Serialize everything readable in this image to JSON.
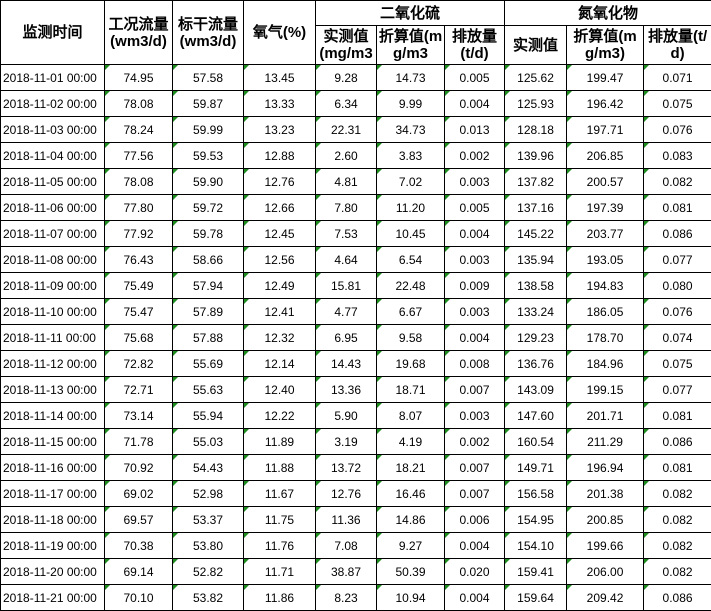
{
  "headers": {
    "time": "监测时间",
    "flow_work": "工况流量(wm3/d)",
    "flow_std": "标干流量(wm3/d)",
    "oxygen": "氧气(%)",
    "so2": "二氧化硫",
    "nox": "氮氧化物",
    "measured": "实测值(mg/m3",
    "converted": "折算值(mg/m3",
    "emission": "排放量(t/d)",
    "measured_nox": "实测值",
    "converted_nox": "折算值(mg/m3)",
    "emission_nox": "排放量(t/d)"
  },
  "rows": [
    {
      "time": "2018-11-01 00:00",
      "flow_work": "74.95",
      "flow_std": "57.58",
      "oxygen": "13.45",
      "so2_measured": "9.28",
      "so2_converted": "14.73",
      "so2_emission": "0.005",
      "nox_measured": "125.62",
      "nox_converted": "199.47",
      "nox_emission": "0.071"
    },
    {
      "time": "2018-11-02 00:00",
      "flow_work": "78.08",
      "flow_std": "59.87",
      "oxygen": "13.33",
      "so2_measured": "6.34",
      "so2_converted": "9.99",
      "so2_emission": "0.004",
      "nox_measured": "125.93",
      "nox_converted": "196.42",
      "nox_emission": "0.075"
    },
    {
      "time": "2018-11-03 00:00",
      "flow_work": "78.24",
      "flow_std": "59.99",
      "oxygen": "13.23",
      "so2_measured": "22.31",
      "so2_converted": "34.73",
      "so2_emission": "0.013",
      "nox_measured": "128.18",
      "nox_converted": "197.71",
      "nox_emission": "0.076"
    },
    {
      "time": "2018-11-04 00:00",
      "flow_work": "77.56",
      "flow_std": "59.53",
      "oxygen": "12.88",
      "so2_measured": "2.60",
      "so2_converted": "3.83",
      "so2_emission": "0.002",
      "nox_measured": "139.96",
      "nox_converted": "206.85",
      "nox_emission": "0.083"
    },
    {
      "time": "2018-11-05 00:00",
      "flow_work": "78.08",
      "flow_std": "59.90",
      "oxygen": "12.76",
      "so2_measured": "4.81",
      "so2_converted": "7.02",
      "so2_emission": "0.003",
      "nox_measured": "137.82",
      "nox_converted": "200.57",
      "nox_emission": "0.082"
    },
    {
      "time": "2018-11-06 00:00",
      "flow_work": "77.80",
      "flow_std": "59.72",
      "oxygen": "12.66",
      "so2_measured": "7.80",
      "so2_converted": "11.20",
      "so2_emission": "0.005",
      "nox_measured": "137.16",
      "nox_converted": "197.39",
      "nox_emission": "0.081"
    },
    {
      "time": "2018-11-07 00:00",
      "flow_work": "77.92",
      "flow_std": "59.78",
      "oxygen": "12.45",
      "so2_measured": "7.53",
      "so2_converted": "10.45",
      "so2_emission": "0.004",
      "nox_measured": "145.22",
      "nox_converted": "203.77",
      "nox_emission": "0.086"
    },
    {
      "time": "2018-11-08 00:00",
      "flow_work": "76.43",
      "flow_std": "58.66",
      "oxygen": "12.56",
      "so2_measured": "4.64",
      "so2_converted": "6.54",
      "so2_emission": "0.003",
      "nox_measured": "135.94",
      "nox_converted": "193.05",
      "nox_emission": "0.077"
    },
    {
      "time": "2018-11-09 00:00",
      "flow_work": "75.49",
      "flow_std": "57.94",
      "oxygen": "12.49",
      "so2_measured": "15.81",
      "so2_converted": "22.48",
      "so2_emission": "0.009",
      "nox_measured": "138.58",
      "nox_converted": "194.83",
      "nox_emission": "0.080"
    },
    {
      "time": "2018-11-10 00:00",
      "flow_work": "75.47",
      "flow_std": "57.89",
      "oxygen": "12.41",
      "so2_measured": "4.77",
      "so2_converted": "6.67",
      "so2_emission": "0.003",
      "nox_measured": "133.24",
      "nox_converted": "186.05",
      "nox_emission": "0.076"
    },
    {
      "time": "2018-11-11 00:00",
      "flow_work": "75.68",
      "flow_std": "57.88",
      "oxygen": "12.32",
      "so2_measured": "6.95",
      "so2_converted": "9.58",
      "so2_emission": "0.004",
      "nox_measured": "129.23",
      "nox_converted": "178.70",
      "nox_emission": "0.074"
    },
    {
      "time": "2018-11-12 00:00",
      "flow_work": "72.82",
      "flow_std": "55.69",
      "oxygen": "12.14",
      "so2_measured": "14.43",
      "so2_converted": "19.68",
      "so2_emission": "0.008",
      "nox_measured": "136.76",
      "nox_converted": "184.96",
      "nox_emission": "0.075"
    },
    {
      "time": "2018-11-13 00:00",
      "flow_work": "72.71",
      "flow_std": "55.63",
      "oxygen": "12.40",
      "so2_measured": "13.36",
      "so2_converted": "18.71",
      "so2_emission": "0.007",
      "nox_measured": "143.09",
      "nox_converted": "199.15",
      "nox_emission": "0.077"
    },
    {
      "time": "2018-11-14 00:00",
      "flow_work": "73.14",
      "flow_std": "55.94",
      "oxygen": "12.22",
      "so2_measured": "5.90",
      "so2_converted": "8.07",
      "so2_emission": "0.003",
      "nox_measured": "147.60",
      "nox_converted": "201.71",
      "nox_emission": "0.081"
    },
    {
      "time": "2018-11-15 00:00",
      "flow_work": "71.78",
      "flow_std": "55.03",
      "oxygen": "11.89",
      "so2_measured": "3.19",
      "so2_converted": "4.19",
      "so2_emission": "0.002",
      "nox_measured": "160.54",
      "nox_converted": "211.29",
      "nox_emission": "0.086"
    },
    {
      "time": "2018-11-16 00:00",
      "flow_work": "70.92",
      "flow_std": "54.43",
      "oxygen": "11.88",
      "so2_measured": "13.72",
      "so2_converted": "18.21",
      "so2_emission": "0.007",
      "nox_measured": "149.71",
      "nox_converted": "196.94",
      "nox_emission": "0.081"
    },
    {
      "time": "2018-11-17 00:00",
      "flow_work": "69.02",
      "flow_std": "52.98",
      "oxygen": "11.67",
      "so2_measured": "12.76",
      "so2_converted": "16.46",
      "so2_emission": "0.007",
      "nox_measured": "156.58",
      "nox_converted": "201.38",
      "nox_emission": "0.082"
    },
    {
      "time": "2018-11-18 00:00",
      "flow_work": "69.57",
      "flow_std": "53.37",
      "oxygen": "11.75",
      "so2_measured": "11.36",
      "so2_converted": "14.86",
      "so2_emission": "0.006",
      "nox_measured": "154.95",
      "nox_converted": "200.85",
      "nox_emission": "0.082"
    },
    {
      "time": "2018-11-19 00:00",
      "flow_work": "70.38",
      "flow_std": "53.80",
      "oxygen": "11.76",
      "so2_measured": "7.08",
      "so2_converted": "9.27",
      "so2_emission": "0.004",
      "nox_measured": "154.10",
      "nox_converted": "199.66",
      "nox_emission": "0.082"
    },
    {
      "time": "2018-11-20 00:00",
      "flow_work": "69.14",
      "flow_std": "52.82",
      "oxygen": "11.71",
      "so2_measured": "38.87",
      "so2_converted": "50.39",
      "so2_emission": "0.020",
      "nox_measured": "159.41",
      "nox_converted": "206.00",
      "nox_emission": "0.082"
    },
    {
      "time": "2018-11-21 00:00",
      "flow_work": "70.10",
      "flow_std": "53.82",
      "oxygen": "11.86",
      "so2_measured": "8.23",
      "so2_converted": "10.94",
      "so2_emission": "0.004",
      "nox_measured": "159.64",
      "nox_converted": "209.42",
      "nox_emission": "0.086"
    }
  ]
}
